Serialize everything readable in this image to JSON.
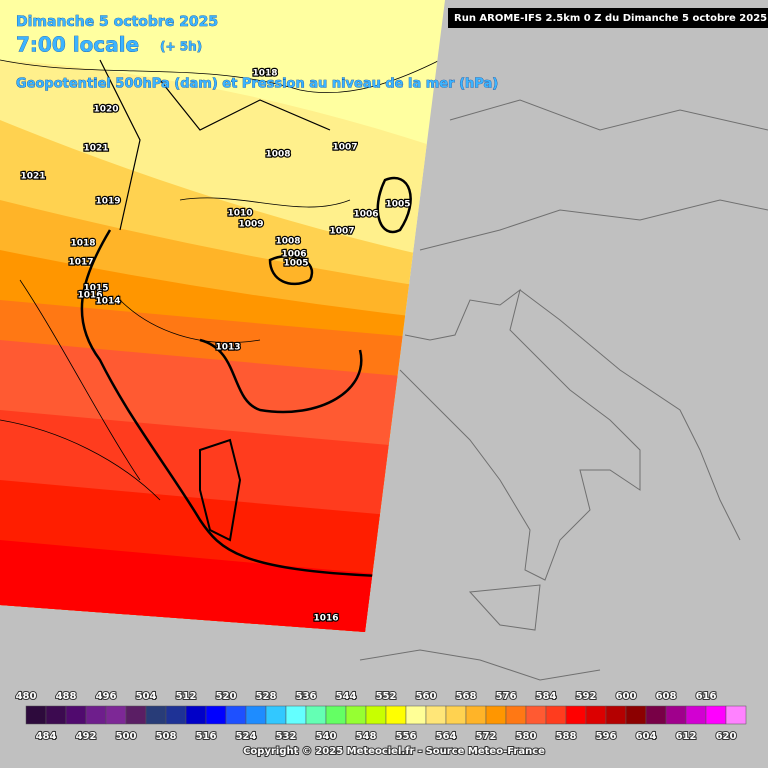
{
  "header": {
    "date": "Dimanche 5 octobre 2025",
    "time": "7:00 locale",
    "offset": "(+ 5h)",
    "subtitle": "Geopotentiel 500hPa (dam) et Pression au niveau de la mer (hPa)",
    "run": "Run AROME-IFS 2.5km 0 Z du Dimanche 5 octobre 2025"
  },
  "isobar_labels": [
    "1018",
    "1020",
    "1021",
    "1021",
    "1008",
    "1007",
    "1019",
    "1010",
    "1009",
    "1006",
    "1005",
    "1007",
    "1008",
    "1006",
    "1005",
    "1018",
    "1017",
    "1015",
    "1016",
    "1014",
    "1013",
    "1016"
  ],
  "legend": {
    "values": [
      480,
      484,
      488,
      492,
      496,
      500,
      504,
      508,
      512,
      516,
      520,
      524,
      528,
      532,
      536,
      540,
      544,
      548,
      552,
      556,
      560,
      564,
      568,
      572,
      576,
      580,
      584,
      588,
      592,
      596,
      600,
      604,
      608,
      612,
      616,
      620
    ],
    "colors": [
      "#2d0a3c",
      "#3c0a50",
      "#500a6e",
      "#6e1e8c",
      "#7d2896",
      "#5a1e64",
      "#283c78",
      "#1e3296",
      "#0000c8",
      "#0000ff",
      "#1e50ff",
      "#1e8cff",
      "#32c8ff",
      "#64ffff",
      "#64ffb4",
      "#64ff64",
      "#96ff32",
      "#c8ff00",
      "#ffff00",
      "#ffff96",
      "#ffe678",
      "#ffd250",
      "#ffb428",
      "#ff9600",
      "#ff7814",
      "#ff5a32",
      "#ff3c1e",
      "#ff0000",
      "#dc0000",
      "#b40000",
      "#8c0000",
      "#780046",
      "#a0008c",
      "#d200d2",
      "#ff00ff",
      "#ff82ff"
    ]
  },
  "footer": "Copyright © 2025 Meteociel.fr - Source Meteo-France"
}
